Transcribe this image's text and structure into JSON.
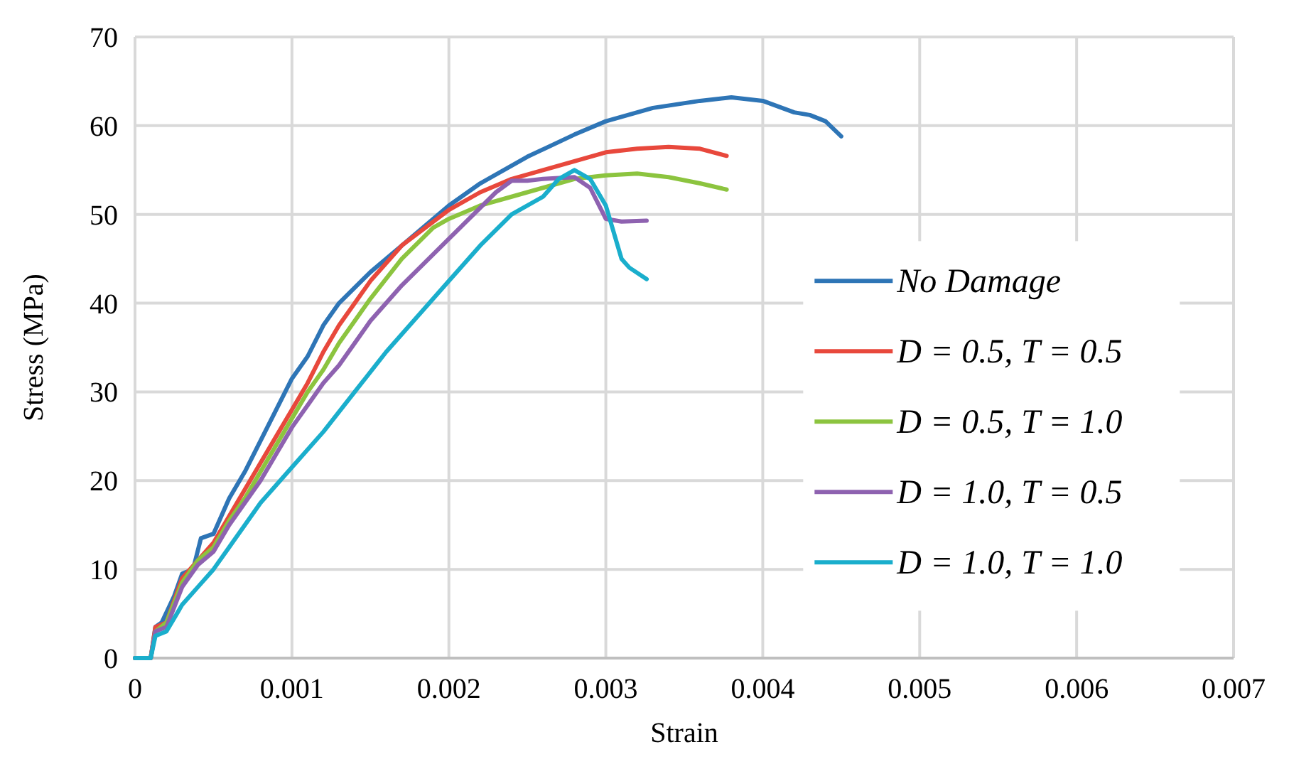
{
  "chart_data": {
    "type": "line",
    "xlabel": "Strain",
    "ylabel": "Stress (MPa)",
    "xlim": [
      0,
      0.007
    ],
    "xticks": [
      0,
      0.001,
      0.002,
      0.003,
      0.004,
      0.005,
      0.006,
      0.007
    ],
    "ylim": [
      0,
      70
    ],
    "yticks": [
      0,
      10,
      20,
      30,
      40,
      50,
      60,
      70
    ],
    "grid": true,
    "legend": "right",
    "marker": "none",
    "line_style": "solid",
    "series": [
      {
        "name": "No Damage",
        "color": "#2e75b6",
        "x": [
          0,
          0.0001,
          0.00013,
          0.00017,
          0.00025,
          0.0003,
          0.00037,
          0.00042,
          0.0005,
          0.0006,
          0.0007,
          0.0008,
          0.0009,
          0.001,
          0.0011,
          0.0012,
          0.0013,
          0.0015,
          0.0017,
          0.002,
          0.0022,
          0.0025,
          0.0028,
          0.003,
          0.0033,
          0.0036,
          0.0038,
          0.004,
          0.0042,
          0.0043,
          0.0044,
          0.0045
        ],
        "values": [
          0,
          0,
          3.5,
          4,
          7,
          9.5,
          10,
          13.5,
          14,
          18,
          21,
          24.5,
          28,
          31.5,
          34,
          37.5,
          40,
          43.5,
          46.5,
          51,
          53.5,
          56.5,
          59,
          60.5,
          62,
          62.8,
          63.2,
          62.8,
          61.5,
          61.2,
          60.5,
          58.8
        ]
      },
      {
        "name": "D = 0.5, T = 0.5",
        "color": "#e8483c",
        "x": [
          0,
          0.0001,
          0.00013,
          0.0002,
          0.0003,
          0.0004,
          0.0005,
          0.0006,
          0.0007,
          0.0008,
          0.0009,
          0.001,
          0.0011,
          0.0012,
          0.0013,
          0.0015,
          0.0017,
          0.002,
          0.0022,
          0.0024,
          0.0026,
          0.0028,
          0.003,
          0.0032,
          0.0034,
          0.0036,
          0.00377
        ],
        "values": [
          0,
          0,
          3.5,
          4,
          9,
          11,
          13,
          16,
          19,
          22,
          25,
          28,
          31,
          34.5,
          37.5,
          42.5,
          46.5,
          50.5,
          52.5,
          54,
          55,
          56,
          57,
          57.4,
          57.6,
          57.4,
          56.6
        ]
      },
      {
        "name": "D = 0.5, T = 1.0",
        "color": "#8cc43f",
        "x": [
          0,
          0.0001,
          0.00013,
          0.0002,
          0.0003,
          0.0004,
          0.0005,
          0.0006,
          0.0007,
          0.0008,
          0.0009,
          0.001,
          0.0011,
          0.0012,
          0.0013,
          0.0015,
          0.0017,
          0.0019,
          0.002,
          0.0022,
          0.0024,
          0.0026,
          0.0028,
          0.003,
          0.0032,
          0.0034,
          0.0036,
          0.00377
        ],
        "values": [
          0,
          0,
          3,
          4,
          8.5,
          11,
          12.5,
          15.5,
          18,
          21,
          24,
          27,
          30,
          32.5,
          35.5,
          40.5,
          45,
          48.5,
          49.5,
          51,
          52,
          53,
          54,
          54.4,
          54.6,
          54.2,
          53.5,
          52.8
        ]
      },
      {
        "name": "D = 1.0, T = 0.5",
        "color": "#8e62b0",
        "x": [
          0,
          0.0001,
          0.00013,
          0.0002,
          0.0003,
          0.0004,
          0.0005,
          0.0006,
          0.0007,
          0.0008,
          0.0009,
          0.001,
          0.0011,
          0.0012,
          0.0013,
          0.0015,
          0.0017,
          0.0019,
          0.0021,
          0.0023,
          0.0024,
          0.0025,
          0.0026,
          0.0028,
          0.0029,
          0.003,
          0.0031,
          0.00326
        ],
        "values": [
          0,
          0,
          3,
          3.5,
          8,
          10.5,
          12,
          15,
          17.5,
          20,
          23,
          26,
          28.5,
          31,
          33,
          38,
          42,
          45.5,
          49,
          52.5,
          53.8,
          53.8,
          54,
          54.2,
          53,
          49.5,
          49.2,
          49.3
        ]
      },
      {
        "name": "D = 1.0, T = 1.0",
        "color": "#1aaecc",
        "x": [
          0,
          0.0001,
          0.00013,
          0.0002,
          0.0003,
          0.0004,
          0.0005,
          0.0006,
          0.0007,
          0.0008,
          0.0009,
          0.001,
          0.0012,
          0.0014,
          0.0016,
          0.0018,
          0.002,
          0.0022,
          0.0024,
          0.0026,
          0.0027,
          0.0028,
          0.0029,
          0.003,
          0.0031,
          0.00315,
          0.00326
        ],
        "values": [
          0,
          0,
          2.5,
          3,
          6,
          8,
          10,
          12.5,
          15,
          17.5,
          19.5,
          21.5,
          25.5,
          30,
          34.5,
          38.5,
          42.5,
          46.5,
          50,
          52,
          54,
          55,
          54,
          51,
          45,
          44,
          42.7
        ]
      }
    ]
  }
}
